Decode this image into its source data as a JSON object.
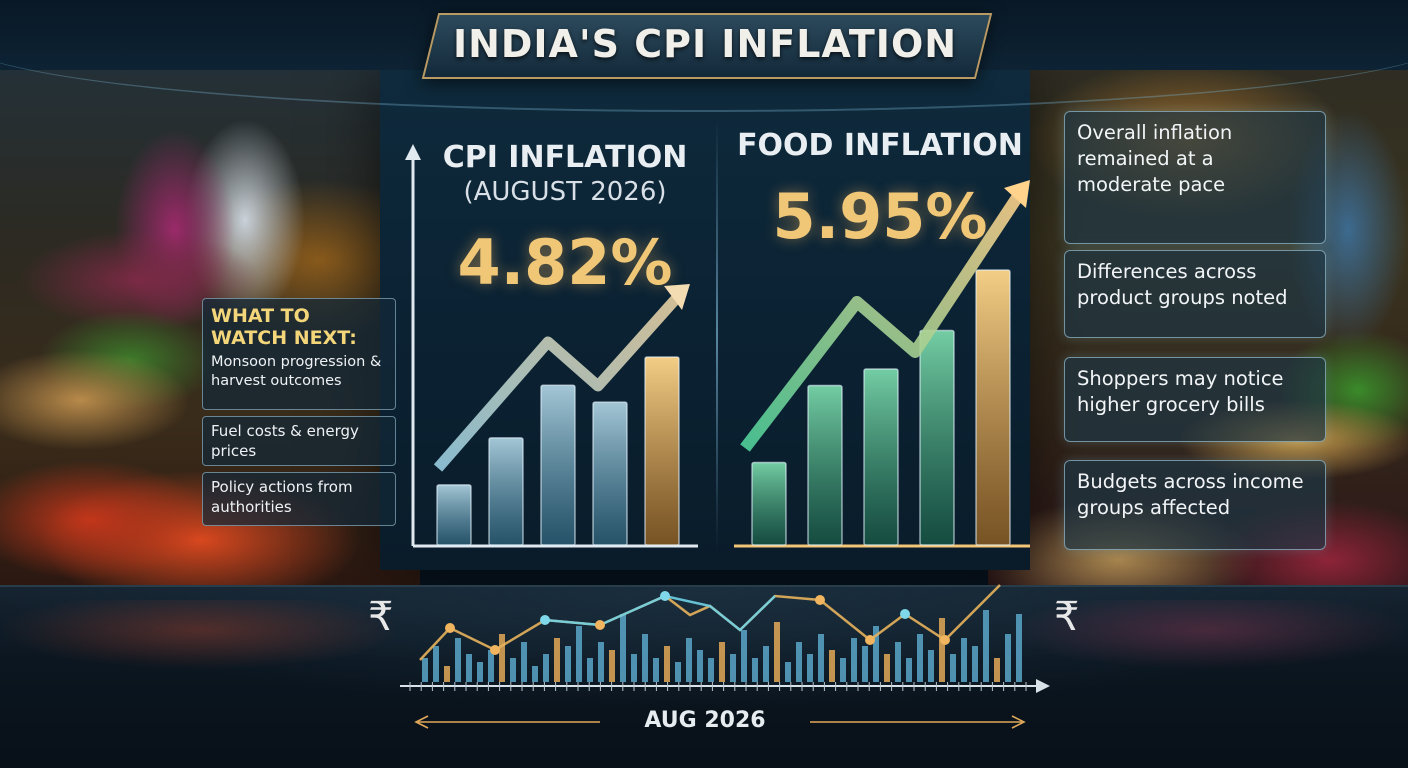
{
  "title": "INDIA'S CPI INFLATION",
  "cpi": {
    "heading": "CPI INFLATION",
    "period": "(AUGUST 2026)",
    "value": "4.82%",
    "bar_levels": [
      0.32,
      0.57,
      0.85,
      0.76,
      1.0
    ]
  },
  "food": {
    "heading": "FOOD INFLATION",
    "value": "5.95%",
    "bar_levels": [
      0.3,
      0.58,
      0.64,
      0.78,
      1.0
    ]
  },
  "watch": {
    "title": "WHAT TO WATCH NEXT:",
    "items": [
      "Monsoon progression & harvest outcomes",
      "Fuel costs & energy prices",
      "Policy actions from authorities"
    ]
  },
  "notes": [
    "Overall inflation remained at a moderate pace",
    "Differences across product groups noted",
    "Shoppers may notice higher grocery bills",
    "Budgets across income groups affected"
  ],
  "timeline": {
    "label": "AUG 2026",
    "currency_symbol": "₹"
  },
  "colors": {
    "accent_gold": "#f0c677",
    "cpi_bar": "#8fc7e0",
    "food_bar": "#3fa07a",
    "highlight_bar": "#e7b25c"
  }
}
